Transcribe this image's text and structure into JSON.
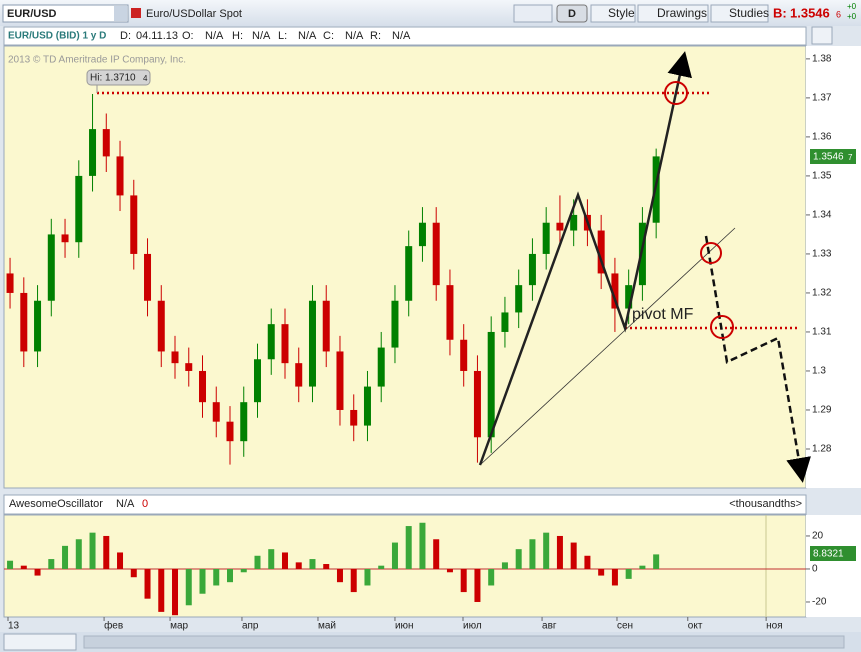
{
  "toolbar": {
    "symbol": "EUR/USD",
    "description": "Euro/USDollar Spot",
    "period": "D",
    "buttons": [
      "Style",
      "Drawings",
      "Studies"
    ],
    "bid_label": "B:",
    "bid": "1.3546",
    "bid_extra": "6",
    "changes": [
      "+0",
      "+0"
    ]
  },
  "info_bar": {
    "title": "EUR/USD (BID) 1 y D",
    "fields": [
      {
        "label": "D:",
        "value": "04.11.13"
      },
      {
        "label": "O:",
        "value": "N/A"
      },
      {
        "label": "H:",
        "value": "N/A"
      },
      {
        "label": "L:",
        "value": "N/A"
      },
      {
        "label": "C:",
        "value": "N/A"
      },
      {
        "label": "R:",
        "value": "N/A"
      }
    ]
  },
  "chart_data": [
    {
      "type": "candlestick",
      "watermark": "2013 © TD Ameritrade IP Company, Inc.",
      "hi_label": "Hi: 1.3710",
      "hi_extra": "4",
      "last_label": "1.3546",
      "last_extra": "7",
      "annotation": "pivot MF",
      "up_color": "#008000",
      "down_color": "#cc0000",
      "open": [
        1.325,
        1.32,
        1.305,
        1.318,
        1.335,
        1.333,
        1.35,
        1.362,
        1.355,
        1.345,
        1.33,
        1.318,
        1.305,
        1.302,
        1.3,
        1.292,
        1.287,
        1.282,
        1.292,
        1.303,
        1.312,
        1.302,
        1.296,
        1.318,
        1.305,
        1.29,
        1.286,
        1.296,
        1.306,
        1.318,
        1.332,
        1.338,
        1.322,
        1.308,
        1.3,
        1.283,
        1.31,
        1.315,
        1.322,
        1.33,
        1.338,
        1.336,
        1.34,
        1.336,
        1.325,
        1.316,
        1.322,
        1.338
      ],
      "high": [
        1.329,
        1.324,
        1.322,
        1.339,
        1.339,
        1.354,
        1.371,
        1.366,
        1.359,
        1.349,
        1.334,
        1.322,
        1.309,
        1.306,
        1.304,
        1.296,
        1.291,
        1.296,
        1.307,
        1.316,
        1.316,
        1.306,
        1.322,
        1.322,
        1.309,
        1.294,
        1.3,
        1.31,
        1.322,
        1.336,
        1.342,
        1.342,
        1.326,
        1.312,
        1.304,
        1.314,
        1.319,
        1.326,
        1.334,
        1.342,
        1.345,
        1.344,
        1.344,
        1.34,
        1.329,
        1.326,
        1.342,
        1.357
      ],
      "low": [
        1.316,
        1.301,
        1.301,
        1.314,
        1.329,
        1.329,
        1.346,
        1.351,
        1.341,
        1.326,
        1.314,
        1.301,
        1.298,
        1.296,
        1.288,
        1.283,
        1.276,
        1.278,
        1.288,
        1.299,
        1.298,
        1.292,
        1.292,
        1.301,
        1.286,
        1.282,
        1.282,
        1.292,
        1.302,
        1.314,
        1.328,
        1.318,
        1.304,
        1.296,
        1.2765,
        1.279,
        1.306,
        1.311,
        1.318,
        1.326,
        1.332,
        1.332,
        1.332,
        1.321,
        1.31,
        1.312,
        1.318,
        1.334
      ],
      "close": [
        1.32,
        1.305,
        1.318,
        1.335,
        1.333,
        1.35,
        1.362,
        1.355,
        1.345,
        1.33,
        1.318,
        1.305,
        1.302,
        1.3,
        1.292,
        1.287,
        1.282,
        1.292,
        1.303,
        1.312,
        1.302,
        1.296,
        1.318,
        1.305,
        1.29,
        1.286,
        1.296,
        1.306,
        1.318,
        1.332,
        1.338,
        1.322,
        1.308,
        1.3,
        1.283,
        1.31,
        1.315,
        1.322,
        1.33,
        1.338,
        1.336,
        1.34,
        1.336,
        1.325,
        1.316,
        1.322,
        1.338,
        1.355
      ],
      "xlim": [
        -0.44,
        57.9
      ],
      "xticks": [
        {
          "value": -0.15,
          "label": "13"
        },
        {
          "value": 6.84,
          "label": "фев"
        },
        {
          "value": 11.64,
          "label": "мар"
        },
        {
          "value": 16.87,
          "label": "апр"
        },
        {
          "value": 22.4,
          "label": "май"
        },
        {
          "value": 28,
          "label": "июн"
        },
        {
          "value": 32.95,
          "label": "июл"
        },
        {
          "value": 38.7,
          "label": "авг"
        },
        {
          "value": 44.15,
          "label": "сен"
        },
        {
          "value": 49.3,
          "label": "окт"
        },
        {
          "value": 55,
          "label": "ноя"
        }
      ],
      "ylim": [
        1.27,
        1.3833
      ],
      "yticks": [
        1.28,
        1.29,
        1.3,
        1.31,
        1.32,
        1.33,
        1.34,
        1.35,
        1.36,
        1.37,
        1.38
      ]
    },
    {
      "type": "bar",
      "title": "AwesomeOscillator",
      "status": "N/A",
      "flag": "0",
      "units": "<thousandths>",
      "last_label": "8.8321",
      "up_color": "#3aa83a",
      "down_color": "#cc0000",
      "values": [
        5,
        2,
        -4,
        6,
        14,
        18,
        22,
        20,
        10,
        -5,
        -18,
        -26,
        -28,
        -22,
        -15,
        -10,
        -8,
        -2,
        8,
        12,
        10,
        4,
        6,
        3,
        -8,
        -14,
        -10,
        2,
        16,
        26,
        28,
        18,
        -2,
        -14,
        -20,
        -10,
        4,
        12,
        18,
        22,
        20,
        16,
        8,
        -4,
        -10,
        -6,
        2,
        8.8321
      ],
      "ylim": [
        -29.1,
        32.7
      ],
      "yticks": [
        -20,
        0,
        20
      ]
    }
  ]
}
